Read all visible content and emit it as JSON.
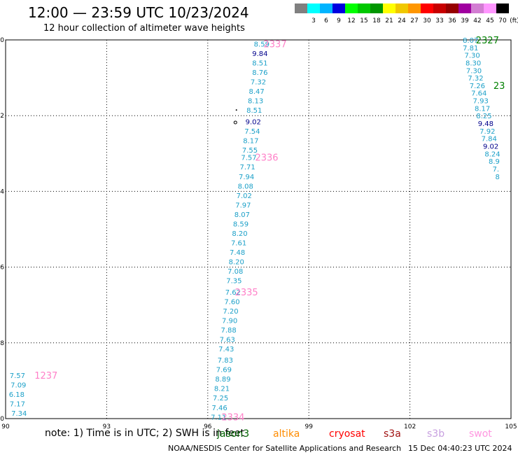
{
  "header": {
    "title": "12:00 — 23:59 UTC 10/23/2024",
    "subtitle": "12 hour collection of altimeter wave heights"
  },
  "colorbar": {
    "unit_label": "(ft)",
    "bins": [
      {
        "label": "",
        "color": "#808080"
      },
      {
        "label": "3",
        "color": "#00ffff"
      },
      {
        "label": "6",
        "color": "#00b4ff"
      },
      {
        "label": "9",
        "color": "#0000e0"
      },
      {
        "label": "12",
        "color": "#00ff00"
      },
      {
        "label": "15",
        "color": "#00c800"
      },
      {
        "label": "18",
        "color": "#009600"
      },
      {
        "label": "21",
        "color": "#ffff00"
      },
      {
        "label": "24",
        "color": "#f0c800"
      },
      {
        "label": "27",
        "color": "#ff9600"
      },
      {
        "label": "30",
        "color": "#ff0000"
      },
      {
        "label": "33",
        "color": "#c80000"
      },
      {
        "label": "36",
        "color": "#960000"
      },
      {
        "label": "39",
        "color": "#a000a0"
      },
      {
        "label": "42",
        "color": "#d27dd2"
      },
      {
        "label": "45",
        "color": "#ff96ff"
      },
      {
        "label": "70",
        "color": "#000000"
      }
    ]
  },
  "axes": {
    "lon_ticks": [
      "90",
      "93",
      "96",
      "99",
      "102",
      "105"
    ],
    "lat_ticks": [
      "-10",
      "-12",
      "-14",
      "-16",
      "-18",
      "-20"
    ]
  },
  "colors": {
    "swh_cyan": "#1ca0c8",
    "swh_dark": "#00008b",
    "pass_pink": "#ff80c8",
    "pass_green": "#008000"
  },
  "tracks": [
    {
      "name": "track-west",
      "pass_id": {
        "text": "1237",
        "lon": 91.2,
        "lat": -18.85,
        "color": "#ff80c8"
      },
      "points": [
        {
          "lon": 90.35,
          "lat": -18.85,
          "v": "7.57",
          "dark": false
        },
        {
          "lon": 90.38,
          "lat": -19.1,
          "v": "7.09",
          "dark": false
        },
        {
          "lon": 90.33,
          "lat": -19.35,
          "v": "6.18",
          "dark": false
        },
        {
          "lon": 90.35,
          "lat": -19.6,
          "v": "7.17",
          "dark": false
        },
        {
          "lon": 90.4,
          "lat": -19.85,
          "v": "7.34",
          "dark": false
        }
      ]
    },
    {
      "name": "track-center",
      "pass_id": {
        "text": "2337",
        "lon": 98.0,
        "lat": -10.1,
        "color": "#ff80c8"
      },
      "points": [
        {
          "lon": 97.6,
          "lat": -10.1,
          "v": "8.59",
          "dark": false
        },
        {
          "lon": 97.55,
          "lat": -10.35,
          "v": "9.84",
          "dark": true
        },
        {
          "lon": 97.55,
          "lat": -10.6,
          "v": "8.51",
          "dark": false
        },
        {
          "lon": 97.55,
          "lat": -10.85,
          "v": "8.76",
          "dark": false
        },
        {
          "lon": 97.5,
          "lat": -11.1,
          "v": "7.32",
          "dark": false
        },
        {
          "lon": 97.45,
          "lat": -11.35,
          "v": "8.47",
          "dark": false
        },
        {
          "lon": 97.42,
          "lat": -11.6,
          "v": "8.13",
          "dark": false
        },
        {
          "lon": 97.38,
          "lat": -11.85,
          "v": "8.51",
          "dark": false
        },
        {
          "lon": 97.35,
          "lat": -12.15,
          "v": "9.02",
          "dark": true
        },
        {
          "lon": 97.32,
          "lat": -12.4,
          "v": "7.54",
          "dark": false
        },
        {
          "lon": 97.28,
          "lat": -12.65,
          "v": "8.17",
          "dark": false
        },
        {
          "lon": 97.25,
          "lat": -12.9,
          "v": "7.55",
          "dark": false
        },
        {
          "lon": 97.22,
          "lat": -13.1,
          "v": "7.57",
          "dark": false
        },
        {
          "lon": 97.18,
          "lat": -13.35,
          "v": "7.71",
          "dark": false
        },
        {
          "lon": 97.15,
          "lat": -13.6,
          "v": "7.94",
          "dark": false
        },
        {
          "lon": 97.12,
          "lat": -13.85,
          "v": "8.08",
          "dark": false
        },
        {
          "lon": 97.08,
          "lat": -14.1,
          "v": "7.02",
          "dark": false
        },
        {
          "lon": 97.05,
          "lat": -14.35,
          "v": "7.97",
          "dark": false
        },
        {
          "lon": 97.02,
          "lat": -14.6,
          "v": "8.07",
          "dark": false
        },
        {
          "lon": 96.98,
          "lat": -14.85,
          "v": "8.59",
          "dark": false
        },
        {
          "lon": 96.95,
          "lat": -15.1,
          "v": "8.20",
          "dark": false
        },
        {
          "lon": 96.92,
          "lat": -15.35,
          "v": "7.61",
          "dark": false
        },
        {
          "lon": 96.88,
          "lat": -15.6,
          "v": "7.48",
          "dark": false
        },
        {
          "lon": 96.85,
          "lat": -15.85,
          "v": "8.20",
          "dark": false
        },
        {
          "lon": 96.82,
          "lat": -16.1,
          "v": "7.08",
          "dark": false
        },
        {
          "lon": 96.78,
          "lat": -16.35,
          "v": "7.35",
          "dark": false
        },
        {
          "lon": 96.75,
          "lat": -16.65,
          "v": "7.62",
          "dark": false
        },
        {
          "lon": 96.72,
          "lat": -16.9,
          "v": "7.60",
          "dark": false
        },
        {
          "lon": 96.68,
          "lat": -17.15,
          "v": "7.20",
          "dark": false
        },
        {
          "lon": 96.65,
          "lat": -17.4,
          "v": "7.90",
          "dark": false
        },
        {
          "lon": 96.62,
          "lat": -17.65,
          "v": "7.88",
          "dark": false
        },
        {
          "lon": 96.58,
          "lat": -17.9,
          "v": "7.63",
          "dark": false
        },
        {
          "lon": 96.55,
          "lat": -18.15,
          "v": "7.43",
          "dark": false
        },
        {
          "lon": 96.52,
          "lat": -18.45,
          "v": "7.83",
          "dark": false
        },
        {
          "lon": 96.48,
          "lat": -18.7,
          "v": "7.69",
          "dark": false
        },
        {
          "lon": 96.45,
          "lat": -18.95,
          "v": "8.89",
          "dark": false
        },
        {
          "lon": 96.42,
          "lat": -19.2,
          "v": "8.21",
          "dark": false
        },
        {
          "lon": 96.38,
          "lat": -19.45,
          "v": "7.25",
          "dark": false
        },
        {
          "lon": 96.35,
          "lat": -19.7,
          "v": "7.46",
          "dark": false
        },
        {
          "lon": 96.32,
          "lat": -19.95,
          "v": "7.11",
          "dark": false
        }
      ],
      "extra_labels": [
        {
          "text": "2336",
          "lon": 97.75,
          "lat": -13.1,
          "color": "#ff80c8"
        },
        {
          "text": "2335",
          "lon": 97.15,
          "lat": -16.65,
          "color": "#ff80c8"
        },
        {
          "text": "2334",
          "lon": 96.75,
          "lat": -19.95,
          "color": "#ff80c8"
        }
      ]
    },
    {
      "name": "track-east",
      "pass_id": {
        "text": "2327",
        "lon": 104.3,
        "lat": -10.0,
        "color": "#008000"
      },
      "points": [
        {
          "lon": 103.8,
          "lat": -10.0,
          "v": "8.07",
          "dark": false
        },
        {
          "lon": 103.8,
          "lat": -10.2,
          "v": "7.81",
          "dark": false
        },
        {
          "lon": 103.85,
          "lat": -10.4,
          "v": "7.30",
          "dark": false
        },
        {
          "lon": 103.88,
          "lat": -10.6,
          "v": "8.30",
          "dark": false
        },
        {
          "lon": 103.9,
          "lat": -10.8,
          "v": "7.30",
          "dark": false
        },
        {
          "lon": 103.95,
          "lat": -11.0,
          "v": "7.32",
          "dark": false
        },
        {
          "lon": 104.0,
          "lat": -11.2,
          "v": "7.26",
          "dark": false
        },
        {
          "lon": 104.05,
          "lat": -11.4,
          "v": "7.64",
          "dark": false
        },
        {
          "lon": 104.1,
          "lat": -11.6,
          "v": "7.93",
          "dark": false
        },
        {
          "lon": 104.15,
          "lat": -11.8,
          "v": "8.17",
          "dark": false
        },
        {
          "lon": 104.2,
          "lat": -12.0,
          "v": "8.25",
          "dark": false
        },
        {
          "lon": 104.25,
          "lat": -12.2,
          "v": "9.48",
          "dark": true
        },
        {
          "lon": 104.3,
          "lat": -12.4,
          "v": "7.92",
          "dark": false
        },
        {
          "lon": 104.35,
          "lat": -12.6,
          "v": "7.84",
          "dark": false
        },
        {
          "lon": 104.4,
          "lat": -12.8,
          "v": "9.02",
          "dark": true
        },
        {
          "lon": 104.45,
          "lat": -13.0,
          "v": "8.24",
          "dark": false
        },
        {
          "lon": 104.5,
          "lat": -13.2,
          "v": "8.9",
          "dark": false
        },
        {
          "lon": 104.55,
          "lat": -13.4,
          "v": "7.",
          "dark": false
        },
        {
          "lon": 104.6,
          "lat": -13.6,
          "v": "8",
          "dark": false
        }
      ],
      "extra_labels": [
        {
          "text": "23",
          "lon": 104.65,
          "lat": -11.2,
          "color": "#008000"
        }
      ]
    }
  ],
  "footer": {
    "note": "note:  1) Time is in UTC;  2) SWH is in feet",
    "satellites": [
      {
        "name": "jason3",
        "color": "#006400"
      },
      {
        "name": "altika",
        "color": "#ff8c00"
      },
      {
        "name": "cryosat",
        "color": "#ff0000"
      },
      {
        "name": "s3a",
        "color": "#a01010"
      },
      {
        "name": "s3b",
        "color": "#c8a0e0"
      },
      {
        "name": "swot",
        "color": "#ff96e0"
      }
    ],
    "credit": "NOAA/NESDIS Center for Satellite Applications and Research",
    "timestamp": "15 Dec 04:40:23 UTC 2024"
  }
}
